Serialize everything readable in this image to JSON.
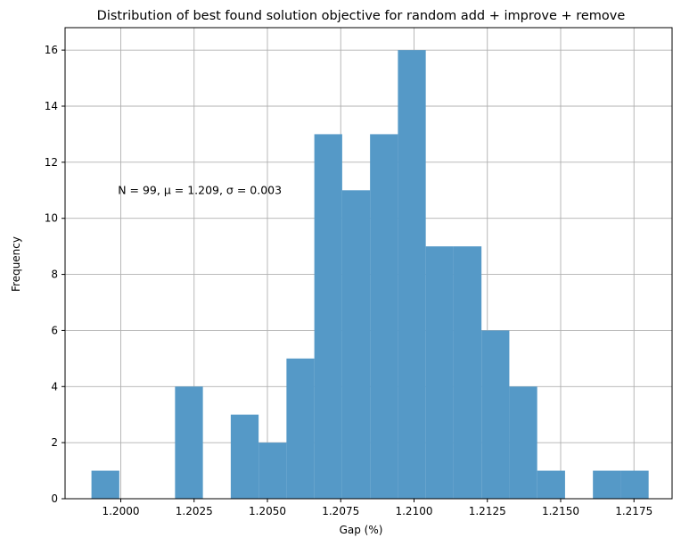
{
  "chart_data": {
    "type": "bar",
    "title": "Distribution of best found solution objective for random add + improve + remove",
    "xlabel": "Gap (%)",
    "ylabel": "Frequency",
    "annotation": "N = 99, μ = 1.209,  σ = 0.003",
    "annotation_position": [
      1.1999,
      11
    ],
    "xlim": [
      1.1981,
      1.2188
    ],
    "ylim": [
      0,
      16.8
    ],
    "xticks": [
      1.2,
      1.2025,
      1.205,
      1.2075,
      1.21,
      1.2125,
      1.215,
      1.2175
    ],
    "xtick_labels": [
      "1.2000",
      "1.2025",
      "1.2050",
      "1.2075",
      "1.2100",
      "1.2125",
      "1.2150",
      "1.2175"
    ],
    "yticks": [
      0,
      2,
      4,
      6,
      8,
      10,
      12,
      14,
      16
    ],
    "ytick_labels": [
      "0",
      "2",
      "4",
      "6",
      "8",
      "10",
      "12",
      "14",
      "16"
    ],
    "grid": true,
    "bar_color": "#5599c7",
    "bin_start": 1.199,
    "bin_width": 0.00095,
    "counts": [
      1,
      0,
      0,
      4,
      0,
      3,
      2,
      5,
      13,
      11,
      13,
      16,
      9,
      9,
      6,
      4,
      1,
      0,
      1,
      1
    ]
  }
}
